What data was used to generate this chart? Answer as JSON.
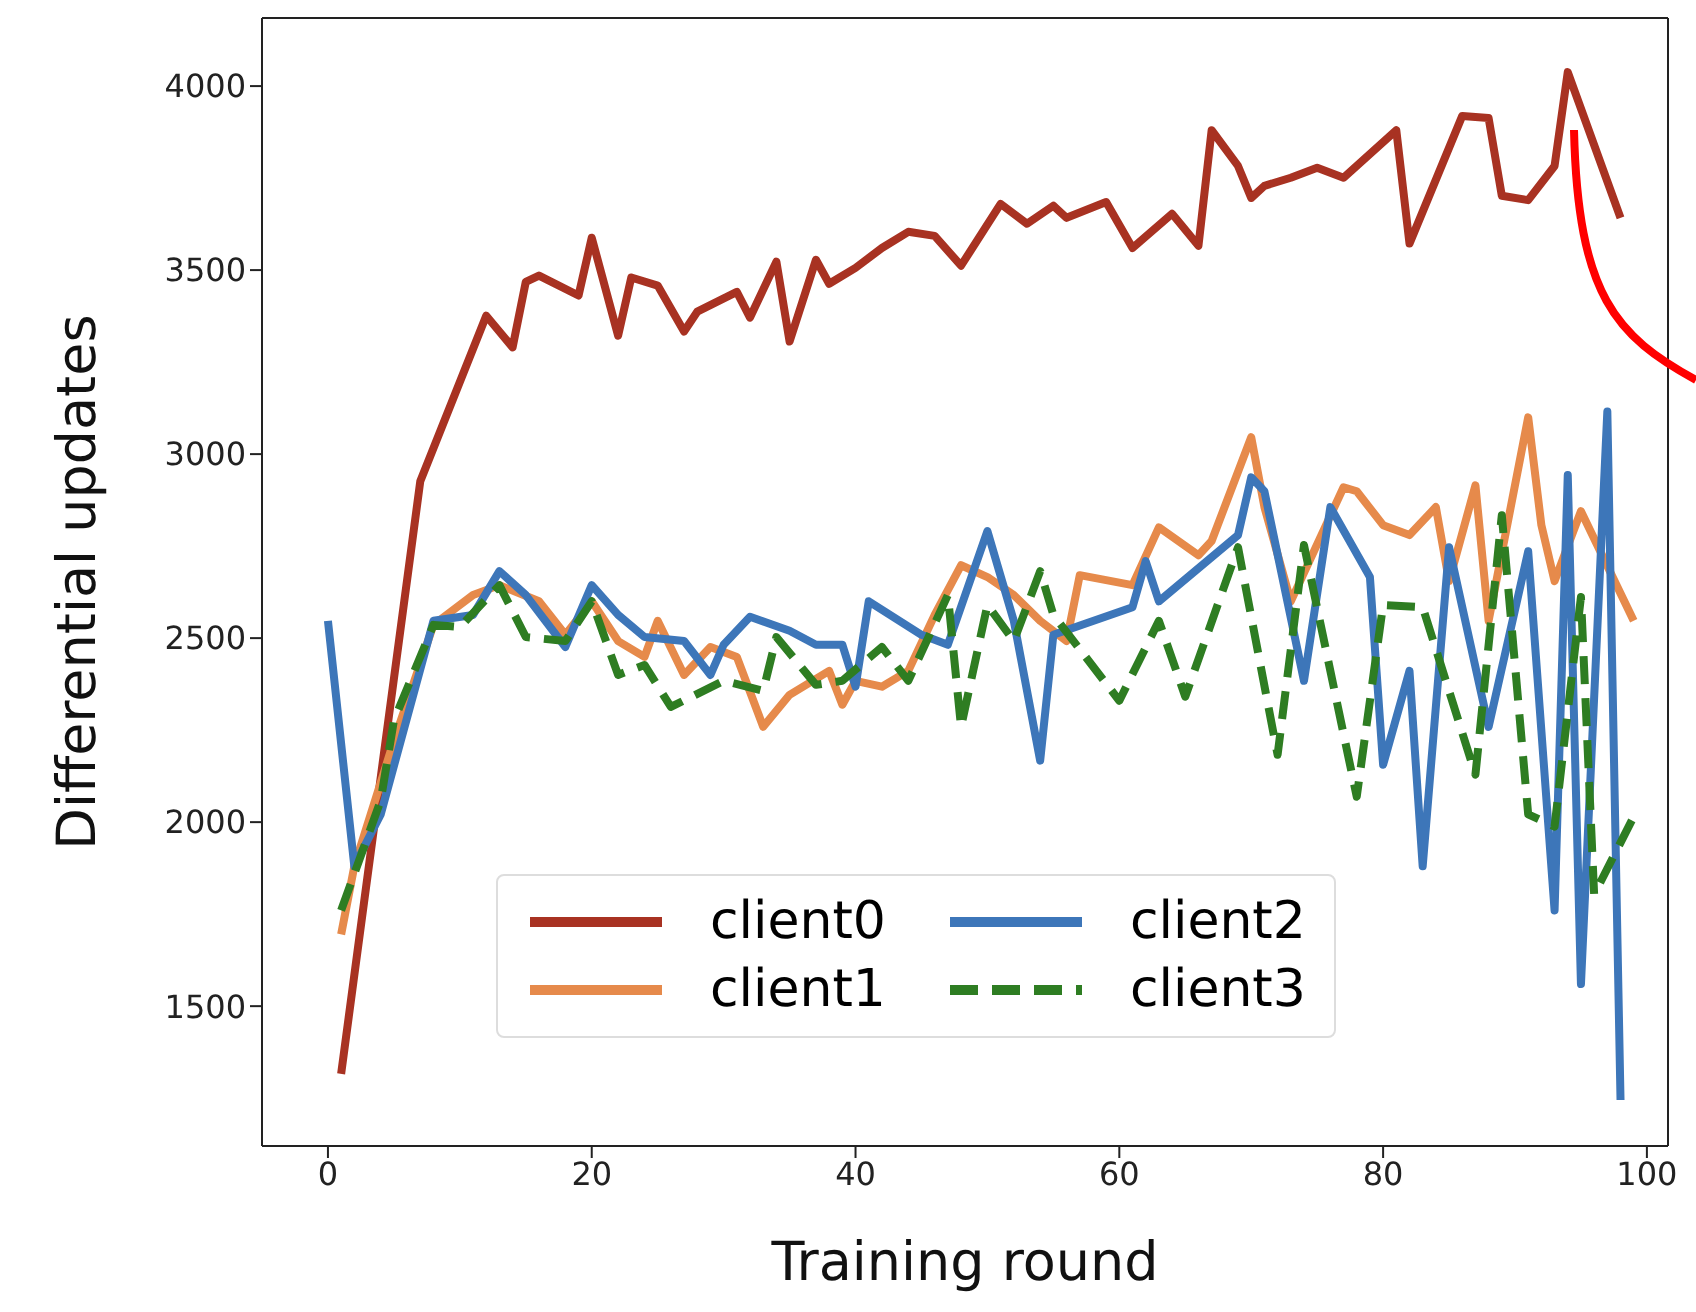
{
  "chart_data": {
    "type": "line",
    "xlabel": "Training round",
    "ylabel": "Differential updates",
    "xlim": [
      -5,
      101.6
    ],
    "ylim": [
      1120,
      4185
    ],
    "xticks": [
      0,
      20,
      40,
      60,
      80,
      100
    ],
    "yticks": [
      1500,
      2000,
      2500,
      3000,
      3500,
      4000
    ],
    "grid": false,
    "legend": "bottom",
    "marker": "none",
    "series": [
      {
        "name": "client0",
        "color": "#a83222",
        "line_style": "solid",
        "x": [
          1,
          7,
          12,
          14,
          15,
          16,
          19,
          20,
          22,
          23,
          25,
          27,
          28,
          31,
          32,
          34,
          35,
          37,
          38,
          40,
          42,
          44,
          46,
          48,
          51,
          53,
          55,
          56,
          59,
          61,
          64,
          66,
          67,
          69,
          70,
          71,
          73,
          75,
          77,
          81,
          82,
          86,
          88,
          89,
          91,
          93,
          94,
          98
        ],
        "values": [
          1316,
          2926,
          3376,
          3290,
          3468,
          3485,
          3431,
          3588,
          3322,
          3480,
          3458,
          3333,
          3387,
          3441,
          3371,
          3523,
          3306,
          3528,
          3463,
          3506,
          3560,
          3604,
          3593,
          3512,
          3680,
          3626,
          3675,
          3642,
          3685,
          3560,
          3653,
          3566,
          3880,
          3783,
          3696,
          3729,
          3751,
          3778,
          3751,
          3880,
          3572,
          3919,
          3913,
          3702,
          3690,
          3783,
          4038,
          3642
        ]
      },
      {
        "name": "client1",
        "color": "#e68a4b",
        "line_style": "solid",
        "x": [
          1,
          2,
          5,
          8,
          11,
          13,
          16,
          18,
          20,
          22,
          24,
          25,
          27,
          29,
          31,
          33,
          35,
          38,
          39,
          40,
          42,
          44,
          46,
          48,
          50,
          52,
          54,
          56,
          57,
          61,
          63,
          66,
          67,
          70,
          71,
          73,
          77,
          78,
          80,
          82,
          84,
          85,
          87,
          88,
          91,
          92,
          93,
          95,
          99
        ],
        "values": [
          1695,
          1880,
          2221,
          2536,
          2617,
          2644,
          2600,
          2509,
          2600,
          2492,
          2449,
          2547,
          2400,
          2476,
          2449,
          2259,
          2346,
          2411,
          2319,
          2384,
          2368,
          2411,
          2563,
          2698,
          2666,
          2617,
          2547,
          2492,
          2671,
          2644,
          2801,
          2725,
          2764,
          3046,
          2856,
          2600,
          2910,
          2899,
          2807,
          2780,
          2856,
          2655,
          2915,
          2547,
          3100,
          2807,
          2655,
          2845,
          2547
        ]
      },
      {
        "name": "client2",
        "color": "#3d76b9",
        "line_style": "solid",
        "x": [
          0,
          2,
          4,
          8,
          11,
          13,
          15,
          18,
          20,
          22,
          24,
          27,
          29,
          30,
          32,
          35,
          37,
          39,
          40,
          41,
          45,
          47,
          50,
          52,
          54,
          55,
          61,
          62,
          63,
          69,
          70,
          71,
          74,
          76,
          79,
          80,
          82,
          83,
          85,
          88,
          91,
          93,
          94,
          95,
          97,
          98
        ],
        "values": [
          2547,
          1880,
          2021,
          2547,
          2563,
          2682,
          2617,
          2476,
          2644,
          2563,
          2503,
          2492,
          2400,
          2482,
          2558,
          2520,
          2482,
          2482,
          2368,
          2600,
          2509,
          2482,
          2791,
          2547,
          2167,
          2509,
          2584,
          2709,
          2600,
          2780,
          2937,
          2899,
          2384,
          2856,
          2666,
          2156,
          2411,
          1880,
          2747,
          2259,
          2736,
          1760,
          2943,
          1560,
          3116,
          1245
        ]
      },
      {
        "name": "client3",
        "color": "#2e7d22",
        "line_style": "dashed",
        "x": [
          1,
          4,
          5,
          8,
          10,
          13,
          15,
          18,
          20,
          22,
          24,
          26,
          30,
          33,
          34,
          37,
          39,
          42,
          44,
          47,
          48,
          50,
          52,
          54,
          55,
          60,
          63,
          65,
          69,
          72,
          74,
          78,
          80,
          83,
          87,
          89,
          91,
          93,
          95,
          96,
          99
        ],
        "values": [
          1760,
          2059,
          2276,
          2536,
          2530,
          2644,
          2503,
          2492,
          2600,
          2400,
          2427,
          2313,
          2384,
          2357,
          2503,
          2373,
          2384,
          2476,
          2384,
          2617,
          2259,
          2590,
          2492,
          2682,
          2563,
          2330,
          2547,
          2341,
          2747,
          2183,
          2753,
          2069,
          2590,
          2584,
          2129,
          2834,
          2021,
          1988,
          2612,
          1803,
          2015
        ]
      }
    ]
  }
}
